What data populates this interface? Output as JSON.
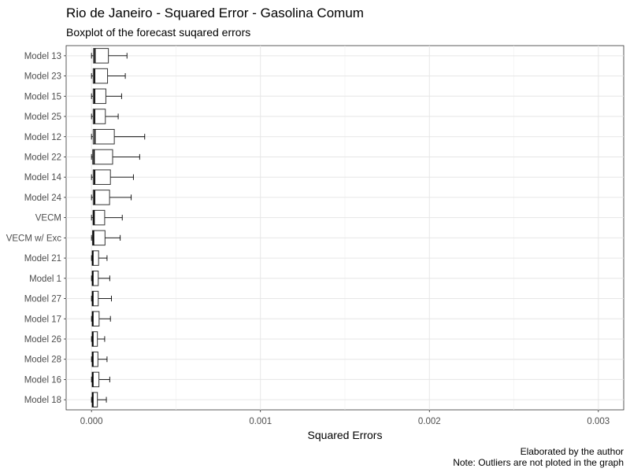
{
  "chart_data": {
    "type": "boxplot",
    "orientation": "horizontal",
    "title": "Rio de Janeiro - Squared Error - Gasolina Comum",
    "subtitle": "Boxplot of the forecast suqared errors",
    "xlabel": "Squared Errors",
    "ylabel": "",
    "xlim": [
      -0.00015,
      0.00315
    ],
    "xticks": [
      0.0,
      0.001,
      0.002,
      0.003
    ],
    "xtick_labels": [
      "0.000",
      "0.001",
      "0.002",
      "0.003"
    ],
    "caption_lines": [
      "Elaborated by the author",
      "Note: Outliers are not ploted in the graph"
    ],
    "grid": true,
    "categories": [
      "Model 13",
      "Model 23",
      "Model 15",
      "Model 25",
      "Model 12",
      "Model 22",
      "Model 14",
      "Model 24",
      "VECM",
      "VECM w/ Exc",
      "Model 21",
      "Model 1",
      "Model 27",
      "Model 17",
      "Model 26",
      "Model 28",
      "Model 16",
      "Model 18"
    ],
    "boxes": [
      {
        "min": 0.0,
        "q1": 1.2e-05,
        "median": 2e-05,
        "q3": 0.0001,
        "max": 0.00021
      },
      {
        "min": 0.0,
        "q1": 1e-05,
        "median": 1.8e-05,
        "q3": 9.5e-05,
        "max": 0.0002
      },
      {
        "min": 0.0,
        "q1": 1e-05,
        "median": 1.8e-05,
        "q3": 8.5e-05,
        "max": 0.000178
      },
      {
        "min": 0.0,
        "q1": 1e-05,
        "median": 1.8e-05,
        "q3": 8.2e-05,
        "max": 0.000158
      },
      {
        "min": 0.0,
        "q1": 1e-05,
        "median": 2e-05,
        "q3": 0.000135,
        "max": 0.000315
      },
      {
        "min": 0.0,
        "q1": 7e-06,
        "median": 1.5e-05,
        "q3": 0.000125,
        "max": 0.000285
      },
      {
        "min": 0.0,
        "q1": 1e-05,
        "median": 1.8e-05,
        "q3": 0.000112,
        "max": 0.000248
      },
      {
        "min": 0.0,
        "q1": 1e-05,
        "median": 1.8e-05,
        "q3": 0.000107,
        "max": 0.000235
      },
      {
        "min": 0.0,
        "q1": 9e-06,
        "median": 1.5e-05,
        "q3": 7.8e-05,
        "max": 0.000182
      },
      {
        "min": 0.0,
        "q1": 6e-06,
        "median": 1.2e-05,
        "q3": 8e-05,
        "max": 0.00017
      },
      {
        "min": 0.0,
        "q1": 4e-06,
        "median": 8e-06,
        "q3": 4.2e-05,
        "max": 9.2e-05
      },
      {
        "min": 0.0,
        "q1": 4e-06,
        "median": 8e-06,
        "q3": 4e-05,
        "max": 0.000108
      },
      {
        "min": 0.0,
        "q1": 4e-06,
        "median": 8e-06,
        "q3": 4e-05,
        "max": 0.000118
      },
      {
        "min": 0.0,
        "q1": 4e-06,
        "median": 8e-06,
        "q3": 4.5e-05,
        "max": 0.000112
      },
      {
        "min": 0.0,
        "q1": 4e-06,
        "median": 8e-06,
        "q3": 3.5e-05,
        "max": 7.8e-05
      },
      {
        "min": 0.0,
        "q1": 4e-06,
        "median": 8e-06,
        "q3": 3.8e-05,
        "max": 9.2e-05
      },
      {
        "min": 0.0,
        "q1": 4e-06,
        "median": 8e-06,
        "q3": 4.4e-05,
        "max": 0.000108
      },
      {
        "min": 0.0,
        "q1": 4e-06,
        "median": 8e-06,
        "q3": 3.5e-05,
        "max": 8.8e-05
      }
    ]
  }
}
